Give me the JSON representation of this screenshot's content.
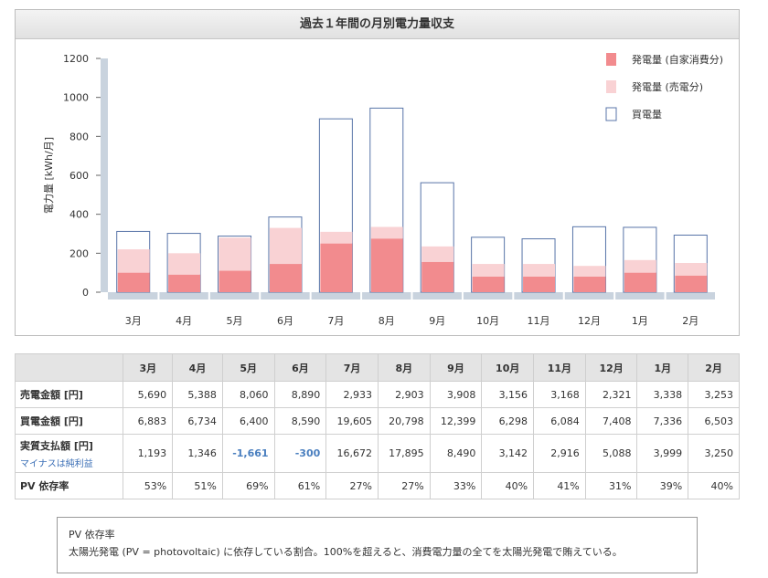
{
  "chart_data": {
    "type": "bar",
    "title": "過去１年間の月別電力量収支",
    "ylabel": "電力量 [kWh/月]",
    "xlabel": "",
    "ylim": [
      0,
      1200
    ],
    "yticks": [
      0,
      200,
      400,
      600,
      800,
      1000,
      1200
    ],
    "categories": [
      "3月",
      "4月",
      "5月",
      "6月",
      "7月",
      "8月",
      "9月",
      "10月",
      "11月",
      "12月",
      "1月",
      "2月"
    ],
    "grid": false,
    "legend_position": "top-right",
    "series": [
      {
        "name": "発電量 (自家消費分)",
        "values": [
          100,
          90,
          110,
          145,
          250,
          275,
          155,
          80,
          80,
          80,
          100,
          85
        ],
        "color": "#f28b8e"
      },
      {
        "name": "発電量 (売電分)",
        "values": [
          120,
          110,
          170,
          185,
          60,
          60,
          80,
          65,
          65,
          55,
          65,
          65
        ],
        "color": "#f9d2d4"
      },
      {
        "name": "買電量",
        "values": [
          312,
          302,
          288,
          386,
          890,
          945,
          562,
          282,
          274,
          336,
          333,
          293
        ],
        "color": "#5874a8"
      }
    ]
  },
  "table": {
    "headers": [
      "3月",
      "4月",
      "5月",
      "6月",
      "7月",
      "8月",
      "9月",
      "10月",
      "11月",
      "12月",
      "1月",
      "2月"
    ],
    "rows": [
      {
        "label": "売電金額 [円]",
        "cells": [
          "5,690",
          "5,388",
          "8,060",
          "8,890",
          "2,933",
          "2,903",
          "3,908",
          "3,156",
          "3,168",
          "2,321",
          "3,338",
          "3,253"
        ]
      },
      {
        "label": "買電金額 [円]",
        "cells": [
          "6,883",
          "6,734",
          "6,400",
          "8,590",
          "19,605",
          "20,798",
          "12,399",
          "6,298",
          "6,084",
          "7,408",
          "7,336",
          "6,503"
        ]
      },
      {
        "label": "実質支払額 [円]",
        "sublabel": "マイナスは純利益",
        "cells": [
          "1,193",
          "1,346",
          "-1,661",
          "-300",
          "16,672",
          "17,895",
          "8,490",
          "3,142",
          "2,916",
          "5,088",
          "3,999",
          "3,250"
        ]
      },
      {
        "label": "PV 依存率",
        "cells": [
          "53%",
          "51%",
          "69%",
          "61%",
          "27%",
          "27%",
          "33%",
          "40%",
          "41%",
          "31%",
          "39%",
          "40%"
        ]
      }
    ]
  },
  "note": {
    "title": "PV 依存率",
    "text": "太陽光発電 (PV = photovoltaic) に依存している割合。100%を超えると、消費電力量の全てを太陽光発電で賄えている。"
  }
}
